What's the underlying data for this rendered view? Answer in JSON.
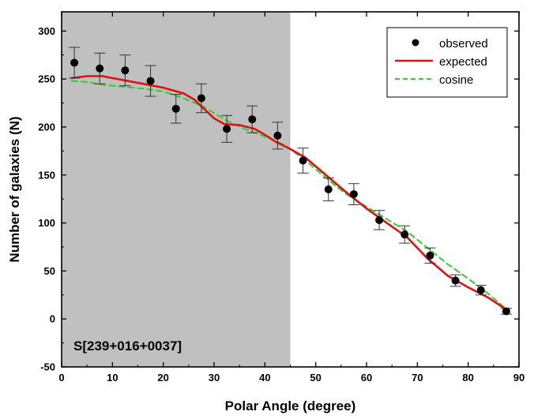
{
  "chart_data": {
    "type": "scatter",
    "xlabel": "Polar Angle (degree)",
    "ylabel": "Number of galaxies (N)",
    "xlim": [
      0,
      90
    ],
    "ylim": [
      -50,
      320
    ],
    "x_ticks": [
      0,
      10,
      20,
      30,
      40,
      50,
      60,
      70,
      80,
      90
    ],
    "y_ticks": [
      -50,
      0,
      50,
      100,
      150,
      200,
      250,
      300
    ],
    "x_tick_labels": [
      "0",
      "10",
      "20",
      "30",
      "40",
      "50",
      "60",
      "70",
      "80",
      "90"
    ],
    "y_tick_labels": [
      "-50",
      "0",
      "50",
      "100",
      "150",
      "200",
      "250",
      "300"
    ],
    "grid": false,
    "shaded_region": {
      "x_start": 0,
      "x_end": 45,
      "color": "#c0c0c0"
    },
    "annotation": "S[239+016+0037]",
    "legend_position": "top-right",
    "series": [
      {
        "name": "observed",
        "kind": "points_with_errorbars",
        "color": "#000000",
        "x": [
          2.5,
          7.5,
          12.5,
          17.5,
          22.5,
          27.5,
          32.5,
          37.5,
          42.5,
          47.5,
          52.5,
          57.5,
          62.5,
          67.5,
          72.5,
          77.5,
          82.5,
          87.5
        ],
        "y": [
          267,
          261,
          259,
          248,
          219,
          230,
          198,
          208,
          191,
          165,
          135,
          130,
          103,
          88,
          66,
          40,
          30,
          8
        ],
        "err": [
          16,
          16,
          16,
          16,
          15,
          15,
          14,
          14,
          14,
          13,
          12,
          11,
          10,
          9,
          8,
          6,
          5,
          3
        ]
      },
      {
        "name": "expected",
        "kind": "line",
        "color": "#dd1111",
        "x": [
          2,
          5,
          8,
          12,
          16,
          20,
          24,
          26,
          28,
          30,
          32,
          35,
          38,
          40,
          42,
          45,
          48,
          52,
          56,
          60,
          64,
          68,
          72,
          76,
          80,
          84,
          88
        ],
        "y": [
          251,
          253,
          253,
          249,
          245,
          241,
          235,
          229,
          219,
          209,
          203,
          202,
          198,
          192,
          185,
          177,
          168,
          150,
          132,
          115,
          100,
          85,
          63,
          45,
          33,
          22,
          8
        ]
      },
      {
        "name": "cosine",
        "kind": "dashed_line",
        "color": "#33cc33",
        "x": [
          2,
          5,
          8,
          12,
          16,
          20,
          24,
          28,
          32,
          36,
          40,
          44,
          48,
          52,
          56,
          60,
          64,
          68,
          72,
          76,
          80,
          84,
          88
        ],
        "y": [
          248,
          247,
          244,
          242,
          240,
          237,
          230,
          221,
          208,
          198,
          190,
          181,
          165,
          147,
          130,
          117,
          104,
          91,
          74,
          57,
          42,
          26,
          8
        ]
      }
    ]
  }
}
